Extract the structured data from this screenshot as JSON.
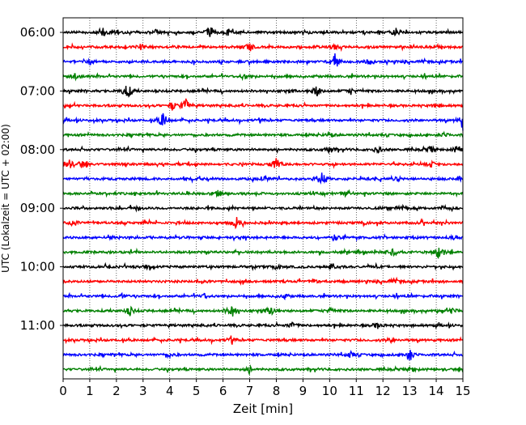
{
  "chart_data": {
    "type": "line",
    "title": "",
    "xlabel": "Zeit  [min]",
    "ylabel": "UTC (Lokalzeit = UTC + 02:00)",
    "xlim": [
      0,
      15
    ],
    "x_ticks": [
      0,
      1,
      2,
      3,
      4,
      5,
      6,
      7,
      8,
      9,
      10,
      11,
      12,
      13,
      14,
      15
    ],
    "x_tick_labels": [
      "0",
      "1",
      "2",
      "3",
      "4",
      "5",
      "6",
      "7",
      "8",
      "9",
      "10",
      "11",
      "12",
      "13",
      "14",
      "15"
    ],
    "y_tick_labels": [
      "06:00",
      "07:00",
      "08:00",
      "09:00",
      "10:00",
      "11:00"
    ],
    "y_tick_rows": [
      0,
      4,
      8,
      12,
      16,
      20
    ],
    "grid": "vertical dotted at every minute",
    "legend": "none",
    "trace_colors": [
      "#000000",
      "#ff0000",
      "#0000ff",
      "#008000"
    ],
    "traces": [
      {
        "start": "06:00",
        "events": [
          [
            1.5,
            0.5
          ],
          [
            2.0,
            0.4
          ],
          [
            3.5,
            0.3
          ],
          [
            5.5,
            0.7
          ],
          [
            6.2,
            0.4
          ],
          [
            12.5,
            0.6
          ]
        ]
      },
      {
        "start": "06:15",
        "events": [
          [
            2.9,
            0.4
          ],
          [
            7.0,
            0.6
          ],
          [
            10.2,
            0.3
          ]
        ]
      },
      {
        "start": "06:30",
        "events": [
          [
            1.0,
            0.4
          ],
          [
            10.2,
            1.0
          ],
          [
            11.5,
            0.5
          ]
        ]
      },
      {
        "start": "06:45",
        "events": [
          [
            0.5,
            0.7
          ],
          [
            6.8,
            0.4
          ]
        ]
      },
      {
        "start": "07:00",
        "events": [
          [
            2.4,
            1.2
          ],
          [
            9.5,
            0.8
          ],
          [
            10.8,
            0.4
          ]
        ]
      },
      {
        "start": "07:15",
        "events": [
          [
            4.1,
            0.6
          ],
          [
            4.6,
            1.0
          ],
          [
            14.0,
            0.3
          ]
        ]
      },
      {
        "start": "07:30",
        "events": [
          [
            3.75,
            1.1
          ],
          [
            15.0,
            1.3
          ]
        ]
      },
      {
        "start": "07:45",
        "events": [
          [
            10.0,
            0.3
          ],
          [
            14.3,
            0.3
          ]
        ]
      },
      {
        "start": "08:00",
        "events": [
          [
            10.0,
            0.5
          ],
          [
            11.8,
            0.4
          ],
          [
            13.8,
            0.4
          ],
          [
            14.8,
            0.6
          ]
        ]
      },
      {
        "start": "08:15",
        "events": [
          [
            0.2,
            0.8
          ],
          [
            0.7,
            0.5
          ],
          [
            8.0,
            0.9
          ],
          [
            13.8,
            0.4
          ]
        ]
      },
      {
        "start": "08:30",
        "events": [
          [
            7.6,
            0.3
          ],
          [
            9.7,
            1.1
          ],
          [
            12.6,
            0.3
          ]
        ]
      },
      {
        "start": "08:45",
        "events": [
          [
            5.8,
            0.5
          ],
          [
            10.7,
            0.3
          ]
        ]
      },
      {
        "start": "09:00",
        "events": [
          [
            2.8,
            0.3
          ],
          [
            12.7,
            0.4
          ],
          [
            14.3,
            0.3
          ]
        ]
      },
      {
        "start": "09:15",
        "events": [
          [
            0.4,
            0.6
          ],
          [
            6.5,
            0.8
          ],
          [
            11.3,
            0.3
          ]
        ]
      },
      {
        "start": "09:30",
        "events": [
          [
            10.2,
            0.5
          ],
          [
            14.7,
            0.3
          ]
        ]
      },
      {
        "start": "09:45",
        "events": [
          [
            12.4,
            0.5
          ],
          [
            14.1,
            0.9
          ]
        ]
      },
      {
        "start": "10:00",
        "events": [
          [
            3.1,
            0.3
          ],
          [
            8.0,
            0.4
          ],
          [
            10.1,
            0.3
          ]
        ]
      },
      {
        "start": "10:15",
        "events": [
          [
            9.4,
            0.3
          ],
          [
            12.4,
            0.3
          ]
        ]
      },
      {
        "start": "10:30",
        "events": [
          [
            2.2,
            0.3
          ],
          [
            5.3,
            0.3
          ],
          [
            8.3,
            0.3
          ]
        ]
      },
      {
        "start": "10:45",
        "events": [
          [
            2.5,
            0.6
          ],
          [
            6.3,
            1.2
          ],
          [
            7.8,
            0.7
          ],
          [
            10.0,
            0.4
          ],
          [
            14.6,
            0.4
          ]
        ]
      },
      {
        "start": "11:00",
        "events": [
          [
            8.6,
            0.4
          ],
          [
            11.8,
            0.4
          ]
        ]
      },
      {
        "start": "11:15",
        "events": [
          [
            6.3,
            0.3
          ],
          [
            12.3,
            0.3
          ]
        ]
      },
      {
        "start": "11:30",
        "events": [
          [
            4.0,
            0.3
          ],
          [
            10.8,
            0.4
          ],
          [
            13.0,
            0.9
          ]
        ]
      },
      {
        "start": "11:45",
        "events": [
          [
            7.0,
            0.4
          ],
          [
            13.1,
            0.3
          ]
        ]
      }
    ]
  }
}
